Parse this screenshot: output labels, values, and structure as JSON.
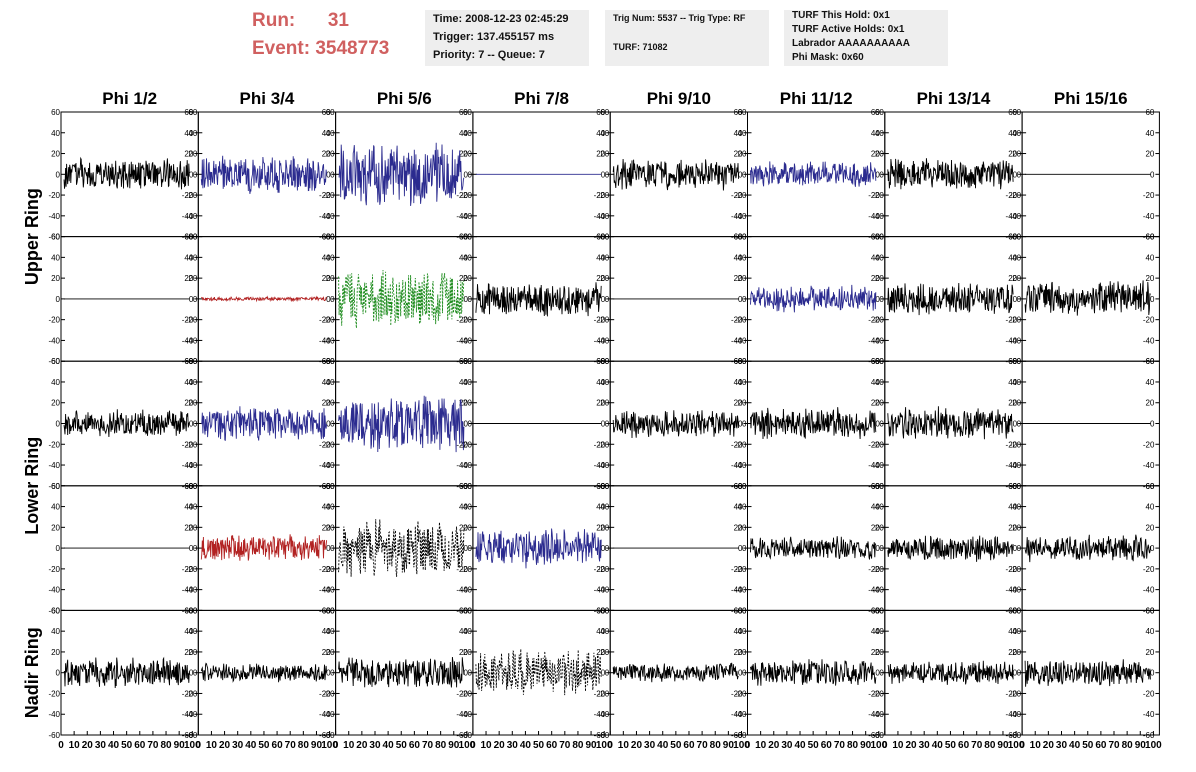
{
  "header": {
    "run_label": "Run:",
    "run_value": "31",
    "event_label": "Event:",
    "event_value": "3548773",
    "time": "Time: 2008-12-23 02:45:29",
    "trigger": "Trigger: 137.455157 ms",
    "priority": "Priority: 7 -- Queue: 7",
    "trig_num": "Trig Num: 5537 -- Trig Type: RF",
    "turf": "TURF: 71082",
    "turf_this_hold": "TURF This Hold: 0x1",
    "turf_active_holds": "TURF Active Holds: 0x1",
    "labrador": "Labrador AAAAAAAAAA",
    "phi_mask": "Phi Mask: 0x60"
  },
  "chart_data": {
    "type": "line",
    "columns": [
      "Phi 1/2",
      "Phi 3/4",
      "Phi 5/6",
      "Phi 7/8",
      "Phi 9/10",
      "Phi 11/12",
      "Phi 13/14",
      "Phi 15/16"
    ],
    "row_groups": [
      {
        "label": "Upper Ring",
        "rows": [
          0,
          1
        ]
      },
      {
        "label": "Lower Ring",
        "rows": [
          2,
          3
        ]
      },
      {
        "label": "Nadir Ring",
        "rows": [
          4
        ]
      }
    ],
    "ylim": [
      -60,
      60
    ],
    "yticks": [
      -60,
      -40,
      -20,
      0,
      20,
      40,
      60
    ],
    "xlim": [
      0,
      100
    ],
    "xtick_labels": [
      "0",
      "10",
      "20",
      "30",
      "40",
      "50",
      "60",
      "70",
      "80",
      "90",
      "100"
    ],
    "colors": {
      "black": "#000000",
      "blue": "#2b2b8f",
      "red": "#b22222",
      "green": "#1a8a1a"
    },
    "panels": [
      [
        {
          "color": "black",
          "amp": 16
        },
        {
          "color": "blue",
          "amp": 20
        },
        {
          "color": "blue",
          "amp": 34
        },
        {
          "color": "blue",
          "amp": 0
        },
        {
          "color": "black",
          "amp": 16
        },
        {
          "color": "blue",
          "amp": 13
        },
        {
          "color": "black",
          "amp": 16
        },
        {
          "color": "black",
          "amp": 0
        }
      ],
      [
        {
          "color": "black",
          "amp": 0
        },
        {
          "color": "red",
          "amp": 2
        },
        {
          "color": "green",
          "amp": 30,
          "dashed": true
        },
        {
          "color": "black",
          "amp": 18
        },
        {
          "color": "black",
          "amp": 0
        },
        {
          "color": "blue",
          "amp": 14
        },
        {
          "color": "black",
          "amp": 16
        },
        {
          "color": "black",
          "amp": 18
        }
      ],
      [
        {
          "color": "black",
          "amp": 14
        },
        {
          "color": "blue",
          "amp": 18
        },
        {
          "color": "blue",
          "amp": 30
        },
        {
          "color": "black",
          "amp": 0
        },
        {
          "color": "black",
          "amp": 14
        },
        {
          "color": "black",
          "amp": 16
        },
        {
          "color": "black",
          "amp": 17
        },
        {
          "color": "black",
          "amp": 0
        }
      ],
      [
        {
          "color": "black",
          "amp": 0
        },
        {
          "color": "red",
          "amp": 14
        },
        {
          "color": "black",
          "amp": 30,
          "dashed": true
        },
        {
          "color": "blue",
          "amp": 20
        },
        {
          "color": "black",
          "amp": 0
        },
        {
          "color": "black",
          "amp": 12
        },
        {
          "color": "black",
          "amp": 14
        },
        {
          "color": "black",
          "amp": 14
        }
      ],
      [
        {
          "color": "black",
          "amp": 16
        },
        {
          "color": "black",
          "amp": 10
        },
        {
          "color": "black",
          "amp": 16
        },
        {
          "color": "black",
          "amp": 24,
          "dashed": true
        },
        {
          "color": "black",
          "amp": 10
        },
        {
          "color": "black",
          "amp": 14
        },
        {
          "color": "black",
          "amp": 12
        },
        {
          "color": "black",
          "amp": 14
        }
      ]
    ]
  }
}
